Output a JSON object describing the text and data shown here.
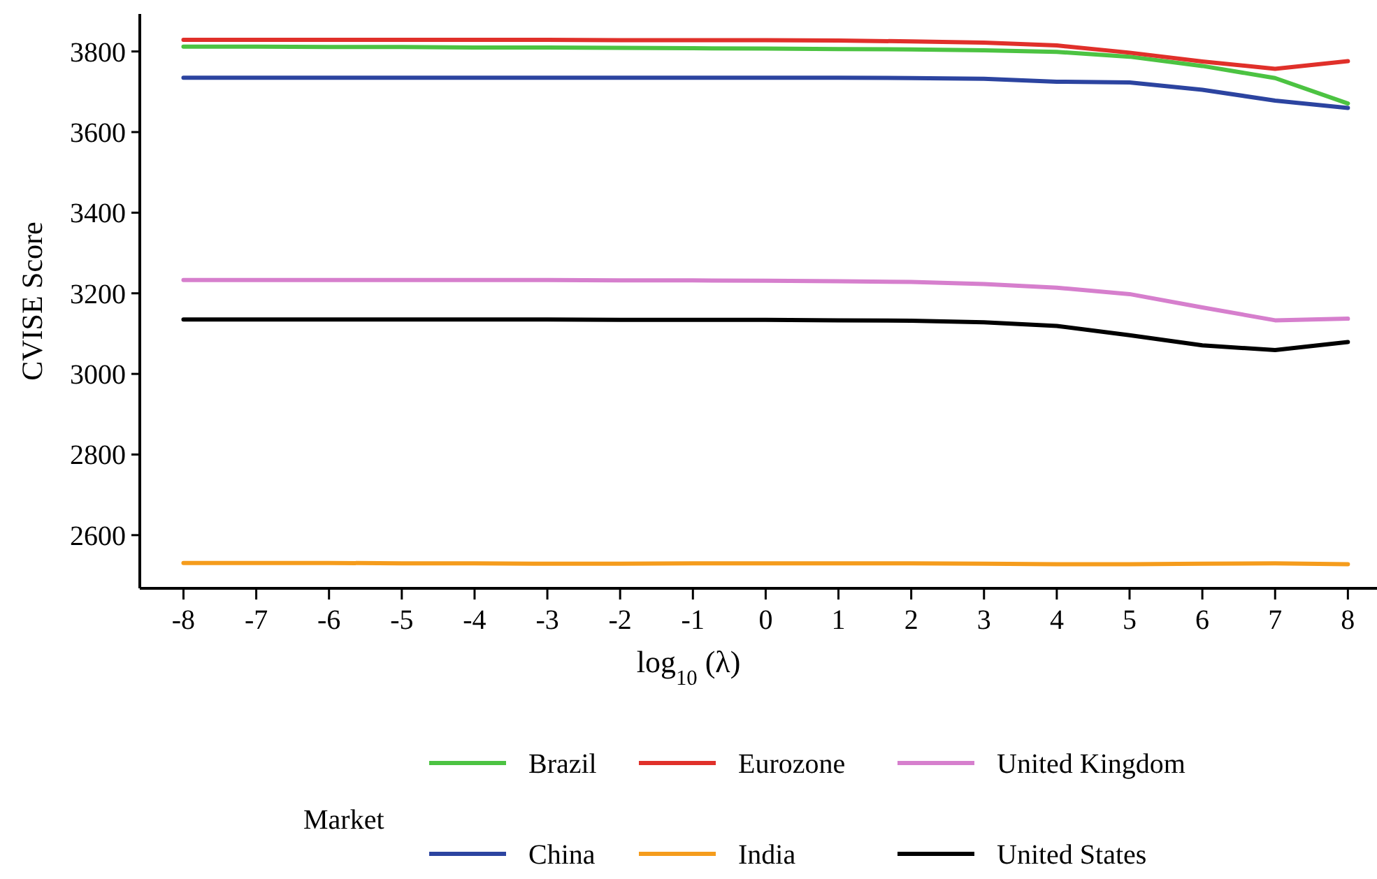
{
  "chart_data": {
    "type": "line",
    "xlabel": "log$_{10}$ (λ)",
    "ylabel": "CVISE Score",
    "legend_title": "Market",
    "x": [
      -8,
      -7,
      -6,
      -5,
      -4,
      -3,
      -2,
      -1,
      0,
      1,
      2,
      3,
      4,
      5,
      6,
      7,
      8
    ],
    "series": [
      {
        "name": "Brazil",
        "color": "#4cc342",
        "values": [
          3812,
          3812,
          3811,
          3811,
          3810,
          3810,
          3809,
          3808,
          3807,
          3806,
          3805,
          3803,
          3799,
          3787,
          3764,
          3734,
          3671
        ]
      },
      {
        "name": "Eurozone",
        "color": "#e0302a",
        "values": [
          3829,
          3829,
          3829,
          3829,
          3829,
          3829,
          3828,
          3828,
          3828,
          3827,
          3825,
          3822,
          3815,
          3797,
          3775,
          3757,
          3776
        ]
      },
      {
        "name": "United Kingdom",
        "color": "#d67fcd",
        "values": [
          3233,
          3233,
          3233,
          3233,
          3233,
          3233,
          3232,
          3232,
          3231,
          3230,
          3228,
          3223,
          3214,
          3198,
          3165,
          3133,
          3137
        ]
      },
      {
        "name": "China",
        "color": "#2c44a0",
        "values": [
          3735,
          3735,
          3735,
          3735,
          3735,
          3735,
          3735,
          3735,
          3735,
          3735,
          3734,
          3732,
          3725,
          3723,
          3705,
          3678,
          3660
        ]
      },
      {
        "name": "India",
        "color": "#f59c1c",
        "values": [
          2531,
          2531,
          2531,
          2530,
          2530,
          2529,
          2529,
          2530,
          2530,
          2530,
          2530,
          2529,
          2528,
          2528,
          2529,
          2530,
          2528
        ]
      },
      {
        "name": "United States",
        "color": "#000000",
        "values": [
          3135,
          3135,
          3135,
          3135,
          3135,
          3135,
          3134,
          3134,
          3134,
          3133,
          3132,
          3128,
          3119,
          3096,
          3071,
          3059,
          3079
        ]
      }
    ],
    "xlim": [
      -8.6,
      8.4
    ],
    "ylim": [
      2468,
      3893
    ],
    "xticks": [
      -8,
      -7,
      -6,
      -5,
      -4,
      -3,
      -2,
      -1,
      0,
      1,
      2,
      3,
      4,
      5,
      6,
      7,
      8
    ],
    "yticks": [
      2600,
      2800,
      3000,
      3200,
      3400,
      3600,
      3800
    ],
    "grid": false,
    "legend": "bottom",
    "marker": "none",
    "line_style": "solid"
  }
}
